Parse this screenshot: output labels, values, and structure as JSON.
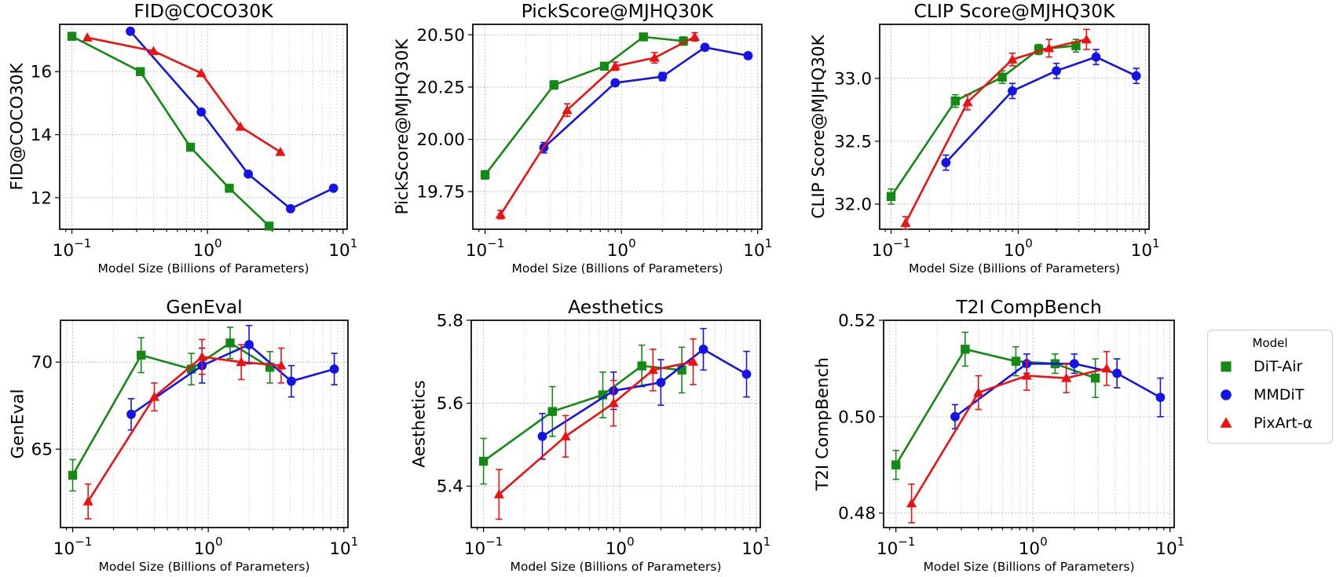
{
  "figure": {
    "background": "#ffffff"
  },
  "legend": {
    "title": "Model",
    "entries": [
      {
        "label": "DiT-Air",
        "color": "#148a14",
        "marker": "square"
      },
      {
        "label": "MMDiT",
        "color": "#1414e8",
        "marker": "circle"
      },
      {
        "label": "PixArt-α",
        "color": "#ee1111",
        "marker": "triangle"
      }
    ]
  },
  "chart_data": [
    {
      "type": "line",
      "title": "FID@COCO30K",
      "ylabel": "FID@COCO30K",
      "xlabel": "Model Size (Billions of Parameters)",
      "xscale": "log",
      "grid": true,
      "xlim": [
        0.0813,
        10.72
      ],
      "ylim": [
        11.0,
        17.5
      ],
      "xticks": [
        0.1,
        1,
        10
      ],
      "xtick_labels": [
        "10⁻¹",
        "10⁰",
        "10¹"
      ],
      "ytick_vals": [
        12,
        14,
        16
      ],
      "ytick_labels": [
        "12",
        "14",
        "16"
      ],
      "series": [
        {
          "name": "DiT-Air",
          "x": [
            0.1,
            0.32,
            0.75,
            1.45,
            2.85
          ],
          "y": [
            17.12,
            16.0,
            13.6,
            12.3,
            11.1
          ],
          "yerr": null
        },
        {
          "name": "MMDiT",
          "x": [
            0.27,
            0.9,
            2.0,
            4.1,
            8.5
          ],
          "y": [
            17.28,
            14.72,
            12.75,
            11.65,
            12.3
          ],
          "yerr": null
        },
        {
          "name": "PixArt-α",
          "x": [
            0.13,
            0.4,
            0.9,
            1.75,
            3.45
          ],
          "y": [
            17.08,
            16.65,
            15.95,
            14.25,
            13.45
          ],
          "yerr": null
        }
      ]
    },
    {
      "type": "line",
      "title": "PickScore@MJHQ30K",
      "ylabel": "PickScore@MJHQ30K",
      "xlabel": "Model Size (Billions of Parameters)",
      "xscale": "log",
      "grid": true,
      "xlim": [
        0.0813,
        10.72
      ],
      "ylim": [
        19.57,
        20.55
      ],
      "xticks": [
        0.1,
        1,
        10
      ],
      "xtick_labels": [
        "10⁻¹",
        "10⁰",
        "10¹"
      ],
      "ytick_vals": [
        19.75,
        20.0,
        20.25,
        20.5
      ],
      "ytick_labels": [
        "19.75",
        "20.00",
        "20.25",
        "20.50"
      ],
      "series": [
        {
          "name": "DiT-Air",
          "x": [
            0.1,
            0.32,
            0.75,
            1.45,
            2.85
          ],
          "y": [
            19.83,
            20.26,
            20.35,
            20.49,
            20.47
          ],
          "yerr": [
            0.02,
            0.02,
            0.015,
            0.012,
            0.02
          ]
        },
        {
          "name": "MMDiT",
          "x": [
            0.27,
            0.9,
            2.0,
            4.1,
            8.5
          ],
          "y": [
            19.96,
            20.27,
            20.3,
            20.44,
            20.4
          ],
          "yerr": [
            0.025,
            0.015,
            0.02,
            0.015,
            0.015
          ]
        },
        {
          "name": "PixArt-α",
          "x": [
            0.13,
            0.4,
            0.9,
            1.75,
            3.45
          ],
          "y": [
            19.64,
            20.14,
            20.35,
            20.39,
            20.49
          ],
          "yerr": [
            0.02,
            0.03,
            0.02,
            0.025,
            0.02
          ]
        }
      ]
    },
    {
      "type": "line",
      "title": "CLIP Score@MJHQ30K",
      "ylabel": "CLIP Score@MJHQ30K",
      "xlabel": "Model Size (Billions of Parameters)",
      "xscale": "log",
      "grid": true,
      "xlim": [
        0.0813,
        10.72
      ],
      "ylim": [
        31.8,
        33.43
      ],
      "xticks": [
        0.1,
        1,
        10
      ],
      "xtick_labels": [
        "10⁻¹",
        "10⁰",
        "10¹"
      ],
      "ytick_vals": [
        32.0,
        32.5,
        33.0
      ],
      "ytick_labels": [
        "32.0",
        "32.5",
        "33.0"
      ],
      "series": [
        {
          "name": "DiT-Air",
          "x": [
            0.1,
            0.32,
            0.75,
            1.45,
            2.85
          ],
          "y": [
            32.06,
            32.82,
            33.01,
            33.23,
            33.26
          ],
          "yerr": [
            0.06,
            0.05,
            0.05,
            0.04,
            0.05
          ]
        },
        {
          "name": "MMDiT",
          "x": [
            0.27,
            0.9,
            2.0,
            4.1,
            8.5
          ],
          "y": [
            32.33,
            32.9,
            33.06,
            33.17,
            33.02
          ],
          "yerr": [
            0.06,
            0.06,
            0.06,
            0.06,
            0.06
          ]
        },
        {
          "name": "PixArt-α",
          "x": [
            0.13,
            0.4,
            0.9,
            1.75,
            3.45
          ],
          "y": [
            31.85,
            32.81,
            33.15,
            33.24,
            33.31
          ],
          "yerr": [
            0.05,
            0.06,
            0.05,
            0.07,
            0.08
          ]
        }
      ]
    },
    {
      "type": "line",
      "title": "GenEval",
      "ylabel": "GenEval",
      "xlabel": "Model Size (Billions of Parameters)",
      "xscale": "log",
      "grid": true,
      "xlim": [
        0.0813,
        10.72
      ],
      "ylim": [
        60.5,
        72.4
      ],
      "xticks": [
        0.1,
        1,
        10
      ],
      "xtick_labels": [
        "10⁻¹",
        "10⁰",
        "10¹"
      ],
      "ytick_vals": [
        65,
        70
      ],
      "ytick_labels": [
        "65",
        "70"
      ],
      "series": [
        {
          "name": "DiT-Air",
          "x": [
            0.1,
            0.32,
            0.75,
            1.45,
            2.85
          ],
          "y": [
            63.5,
            70.4,
            69.6,
            71.1,
            69.7
          ],
          "yerr": [
            0.9,
            1.0,
            0.9,
            0.9,
            0.9
          ]
        },
        {
          "name": "MMDiT",
          "x": [
            0.27,
            0.9,
            2.0,
            4.1,
            8.5
          ],
          "y": [
            67.0,
            69.8,
            71.0,
            68.9,
            69.6
          ],
          "yerr": [
            0.9,
            1.0,
            1.1,
            0.9,
            0.9
          ]
        },
        {
          "name": "PixArt-α",
          "x": [
            0.13,
            0.4,
            0.9,
            1.75,
            3.45
          ],
          "y": [
            62.0,
            68.0,
            70.3,
            70.0,
            69.8
          ],
          "yerr": [
            1.0,
            0.8,
            1.0,
            1.0,
            1.0
          ]
        }
      ]
    },
    {
      "type": "line",
      "title": "Aesthetics",
      "ylabel": "Aesthetics",
      "xlabel": "Model Size (Billions of Parameters)",
      "xscale": "log",
      "grid": true,
      "xlim": [
        0.0813,
        10.72
      ],
      "ylim": [
        5.3,
        5.8
      ],
      "xticks": [
        0.1,
        1,
        10
      ],
      "xtick_labels": [
        "10⁻¹",
        "10⁰",
        "10¹"
      ],
      "ytick_vals": [
        5.4,
        5.6,
        5.8
      ],
      "ytick_labels": [
        "5.4",
        "5.6",
        "5.8"
      ],
      "series": [
        {
          "name": "DiT-Air",
          "x": [
            0.1,
            0.32,
            0.75,
            1.45,
            2.85
          ],
          "y": [
            5.46,
            5.58,
            5.62,
            5.69,
            5.68
          ],
          "yerr": [
            0.055,
            0.06,
            0.055,
            0.05,
            0.055
          ]
        },
        {
          "name": "MMDiT",
          "x": [
            0.27,
            0.9,
            2.0,
            4.1,
            8.5
          ],
          "y": [
            5.52,
            5.63,
            5.65,
            5.73,
            5.67
          ],
          "yerr": [
            0.055,
            0.045,
            0.055,
            0.05,
            0.055
          ]
        },
        {
          "name": "PixArt-α",
          "x": [
            0.13,
            0.4,
            0.9,
            1.75,
            3.45
          ],
          "y": [
            5.38,
            5.52,
            5.6,
            5.68,
            5.7
          ],
          "yerr": [
            0.06,
            0.05,
            0.055,
            0.05,
            0.055
          ]
        }
      ]
    },
    {
      "type": "line",
      "title": "T2I CompBench",
      "ylabel": "T2I CompBench",
      "xlabel": "Model Size (Billions of Parameters)",
      "xscale": "log",
      "grid": true,
      "xlim": [
        0.0813,
        10.72
      ],
      "ylim": [
        0.477,
        0.52
      ],
      "xticks": [
        0.1,
        1,
        10
      ],
      "xtick_labels": [
        "10⁻¹",
        "10⁰",
        "10¹"
      ],
      "ytick_vals": [
        0.48,
        0.5,
        0.52
      ],
      "ytick_labels": [
        "0.48",
        "0.50",
        "0.52"
      ],
      "series": [
        {
          "name": "DiT-Air",
          "x": [
            0.1,
            0.32,
            0.75,
            1.45,
            2.85
          ],
          "y": [
            0.49,
            0.514,
            0.5115,
            0.511,
            0.508
          ],
          "yerr": [
            0.003,
            0.0035,
            0.003,
            0.002,
            0.004
          ]
        },
        {
          "name": "MMDiT",
          "x": [
            0.27,
            0.9,
            2.0,
            4.1,
            8.5
          ],
          "y": [
            0.5,
            0.511,
            0.511,
            0.509,
            0.504
          ],
          "yerr": [
            0.0025,
            0.002,
            0.002,
            0.003,
            0.004
          ]
        },
        {
          "name": "PixArt-α",
          "x": [
            0.13,
            0.4,
            0.9,
            1.75,
            3.45
          ],
          "y": [
            0.482,
            0.505,
            0.5085,
            0.508,
            0.51
          ],
          "yerr": [
            0.004,
            0.0035,
            0.003,
            0.003,
            0.0035
          ]
        }
      ]
    }
  ]
}
